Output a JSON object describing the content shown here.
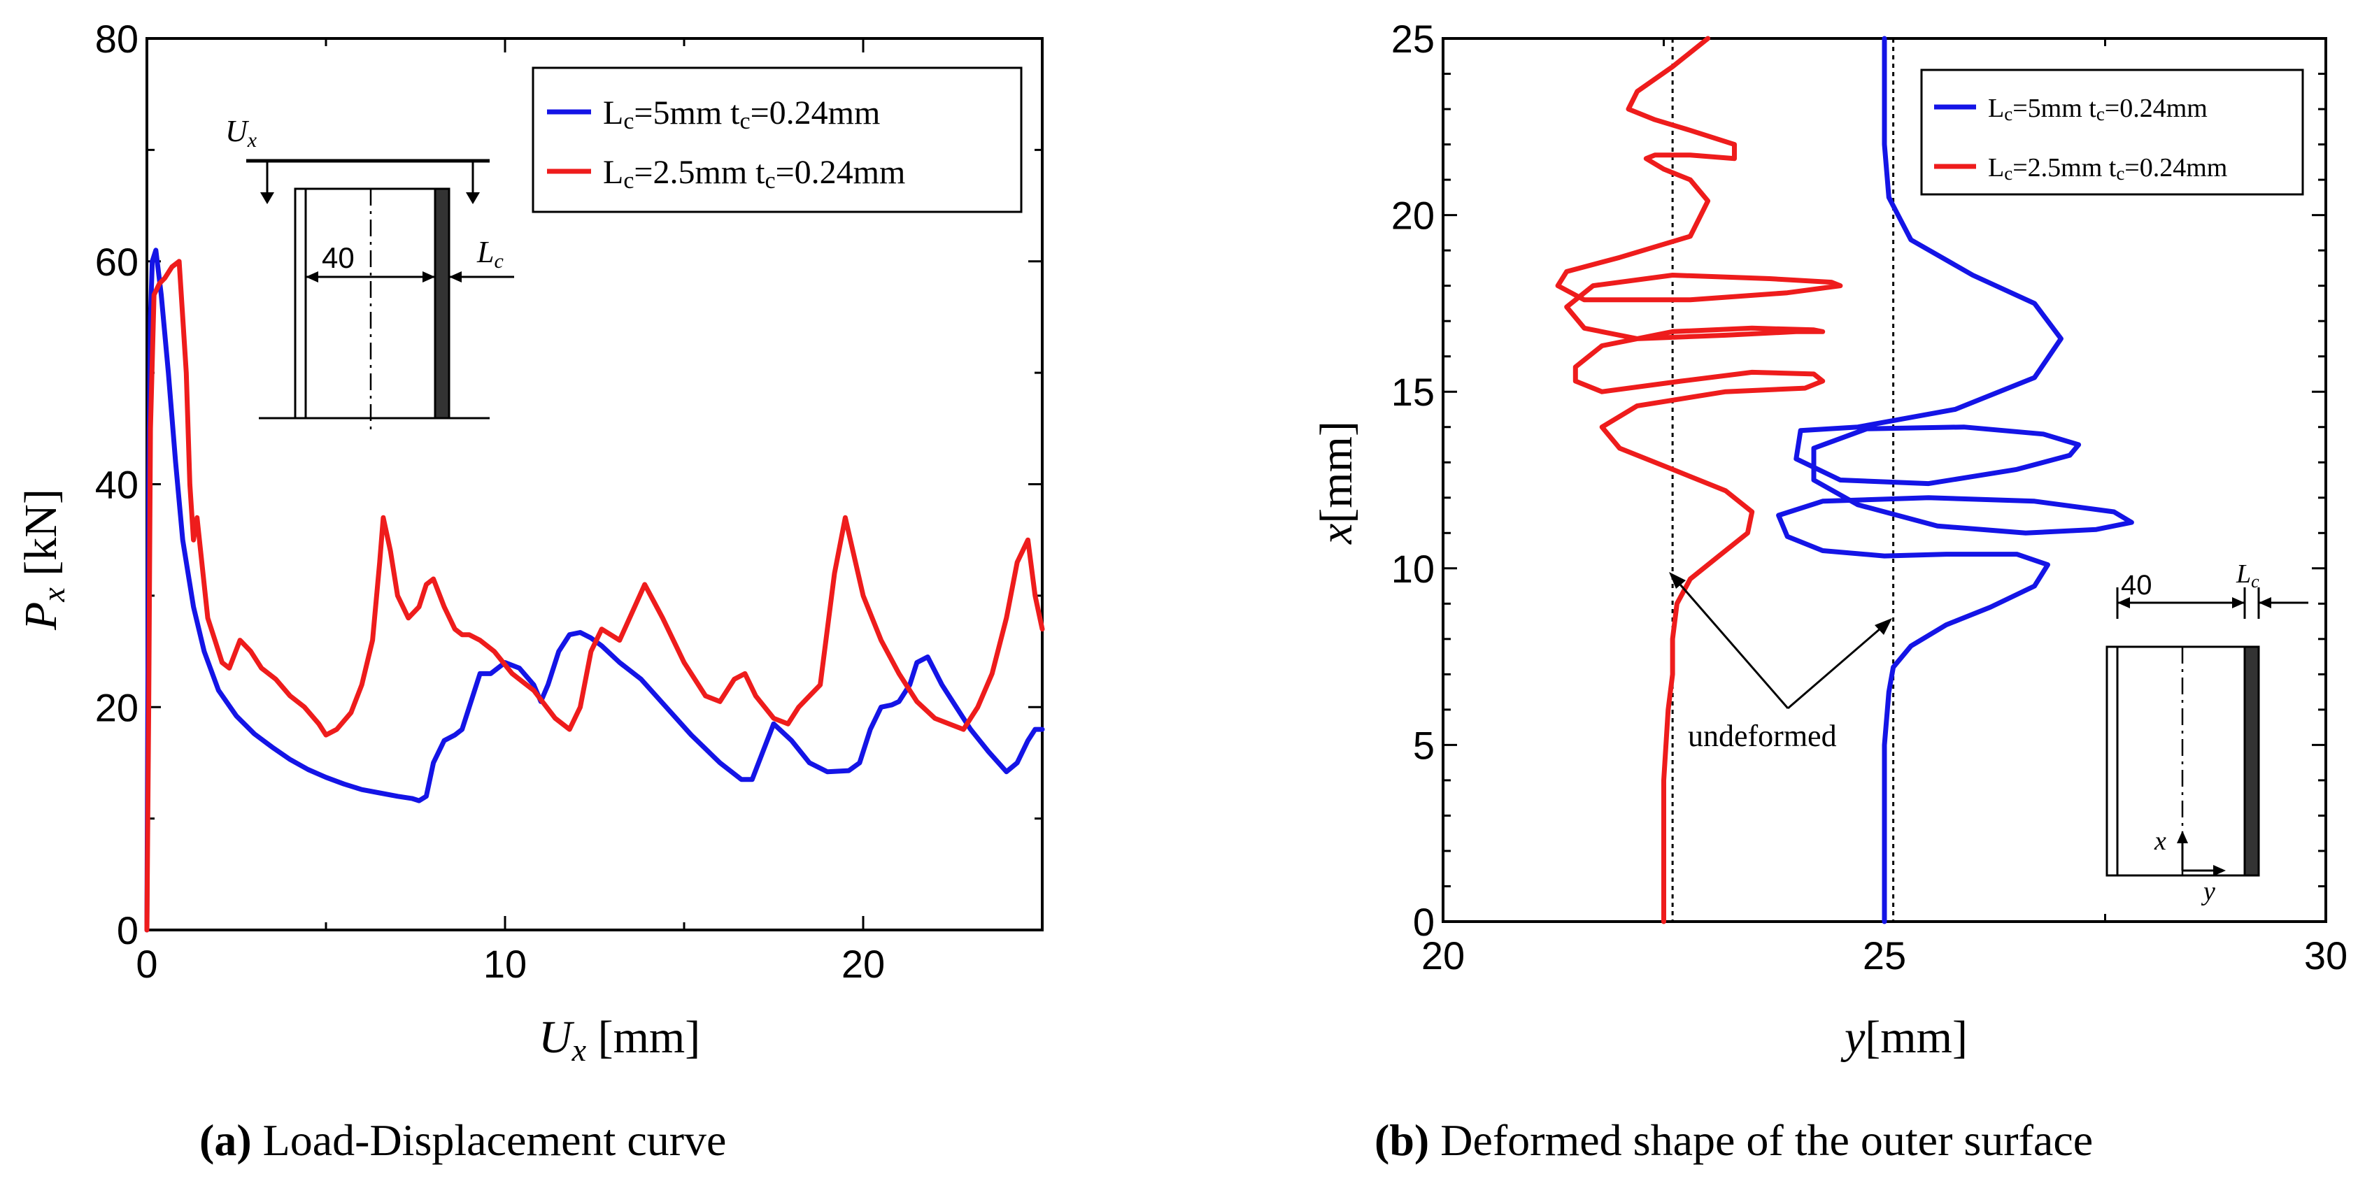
{
  "chart_data": [
    {
      "type": "line",
      "panel_label": "(a)",
      "caption": "Load-Displacement curve",
      "xlabel": "U_x [mm]",
      "ylabel": "P_x [kN]",
      "xlim": [
        0,
        25
      ],
      "ylim": [
        0,
        80
      ],
      "xticks": [
        0,
        10,
        20
      ],
      "yticks": [
        0,
        20,
        40,
        60,
        80
      ],
      "legend_position": "top-right",
      "inset": {
        "label_load": "U_x",
        "label_width": "40",
        "label_cap": "L_c"
      },
      "series": [
        {
          "name": "Lc=5mm tc=0.24mm",
          "color": "#1414e6",
          "x": [
            0,
            0.05,
            0.1,
            0.15,
            0.25,
            0.4,
            0.6,
            0.8,
            1.0,
            1.3,
            1.6,
            2.0,
            2.5,
            3.0,
            3.5,
            4.0,
            4.5,
            5.0,
            5.5,
            6.0,
            6.5,
            7.0,
            7.4,
            7.6,
            7.8,
            8.0,
            8.3,
            8.6,
            8.8,
            9.0,
            9.3,
            9.6,
            10.0,
            10.4,
            10.8,
            11.0,
            11.2,
            11.5,
            11.8,
            12.1,
            12.4,
            12.7,
            13.2,
            13.8,
            14.5,
            15.2,
            16.0,
            16.6,
            16.9,
            17.2,
            17.5,
            18.0,
            18.5,
            19.0,
            19.6,
            19.9,
            20.2,
            20.5,
            20.8,
            21.0,
            21.3,
            21.5,
            21.8,
            22.2,
            22.6,
            23.0,
            23.5,
            24.0,
            24.3,
            24.6,
            24.8,
            25.0
          ],
          "values": [
            0,
            40,
            55,
            60,
            61,
            57,
            50,
            42,
            35,
            29,
            25,
            21.5,
            19.2,
            17.6,
            16.4,
            15.3,
            14.4,
            13.7,
            13.1,
            12.6,
            12.3,
            12.0,
            11.8,
            11.6,
            12,
            15,
            17,
            17.5,
            18,
            20,
            23,
            23,
            24,
            23.5,
            22,
            20.5,
            22,
            25,
            26.5,
            26.7,
            26.2,
            25.5,
            24,
            22.5,
            20,
            17.5,
            15,
            13.5,
            13.5,
            16,
            18.5,
            17,
            15,
            14.2,
            14.3,
            15,
            18,
            20,
            20.2,
            20.5,
            22,
            24,
            24.5,
            22,
            20,
            18,
            16,
            14.2,
            15,
            17,
            18,
            18
          ]
        },
        {
          "name": "Lc=2.5mm tc=0.24mm",
          "color": "#ee1c1c",
          "x": [
            0,
            0.02,
            0.05,
            0.1,
            0.2,
            0.35,
            0.5,
            0.7,
            0.9,
            1.1,
            1.2,
            1.3,
            1.4,
            1.5,
            1.7,
            1.9,
            2.1,
            2.3,
            2.6,
            2.9,
            3.2,
            3.6,
            4.0,
            4.4,
            4.8,
            5.0,
            5.3,
            5.7,
            6.0,
            6.3,
            6.5,
            6.6,
            6.8,
            7.0,
            7.3,
            7.6,
            7.8,
            8.0,
            8.3,
            8.6,
            8.8,
            9.0,
            9.3,
            9.7,
            10.2,
            10.8,
            11.4,
            11.8,
            12.1,
            12.4,
            12.7,
            13.2,
            13.9,
            14.4,
            15.0,
            15.6,
            16.0,
            16.4,
            16.7,
            17.0,
            17.5,
            17.9,
            18.2,
            18.5,
            18.8,
            19.0,
            19.2,
            19.5,
            20.0,
            20.5,
            21.0,
            21.5,
            22.0,
            22.4,
            22.8,
            23.2,
            23.6,
            24.0,
            24.3,
            24.6,
            24.8,
            25.0
          ],
          "values": [
            0,
            8,
            20,
            45,
            57,
            58,
            58.5,
            59.5,
            60,
            50,
            40,
            35,
            37,
            34,
            28,
            26,
            24,
            23.5,
            26,
            25,
            23.5,
            22.5,
            21,
            20,
            18.5,
            17.5,
            18,
            19.5,
            22,
            26,
            33,
            37,
            34,
            30,
            28,
            29,
            31,
            31.5,
            29,
            27,
            26.5,
            26.5,
            26,
            25,
            23,
            21.5,
            19,
            18,
            20,
            25,
            27,
            26,
            31,
            28,
            24,
            21,
            20.5,
            22.5,
            23,
            21,
            19,
            18.5,
            20,
            21,
            22,
            27,
            32,
            37,
            30,
            26,
            23,
            20.5,
            19,
            18.5,
            18,
            20,
            23,
            28,
            33,
            35,
            30,
            27
          ]
        }
      ]
    },
    {
      "type": "line",
      "panel_label": "(b)",
      "caption": "Deformed shape of the outer surface",
      "xlabel": "y[mm]",
      "ylabel": "x[mm]",
      "xlim": [
        20,
        30
      ],
      "ylim": [
        0,
        25
      ],
      "xticks": [
        20,
        25,
        30
      ],
      "yticks": [
        0,
        5,
        10,
        15,
        20,
        25
      ],
      "legend_position": "top-right",
      "annotation": "undeformed",
      "reference_lines_y": [
        22.6,
        25.1
      ],
      "inset": {
        "label_width": "40",
        "label_cap": "L_c",
        "axis_x": "x",
        "axis_y": "y"
      },
      "series": [
        {
          "name": "Lc=5mm tc=0.24mm",
          "color": "#1414e6",
          "y": [
            25.0,
            25.0,
            25.05,
            25.1,
            25.3,
            25.7,
            26.2,
            26.7,
            26.85,
            26.5,
            25.7,
            25.0,
            24.3,
            23.9,
            23.8,
            24.3,
            25.5,
            26.7,
            27.6,
            27.8,
            27.4,
            26.6,
            25.6,
            24.7,
            24.2,
            24.2,
            24.8,
            25.9,
            26.8,
            27.2,
            27.1,
            26.5,
            25.5,
            24.5,
            24.0,
            24.05,
            24.7,
            25.8,
            26.7,
            27.0,
            26.7,
            26.0,
            25.3,
            25.05,
            25.0,
            25.0,
            25.0
          ],
          "values": [
            0,
            5,
            6.5,
            7.2,
            7.8,
            8.4,
            8.9,
            9.5,
            10.1,
            10.4,
            10.4,
            10.35,
            10.5,
            10.9,
            11.5,
            11.9,
            12.0,
            11.9,
            11.6,
            11.3,
            11.1,
            11.0,
            11.2,
            11.8,
            12.5,
            13.4,
            13.95,
            14.0,
            13.8,
            13.5,
            13.2,
            12.8,
            12.4,
            12.5,
            13.1,
            13.9,
            14.0,
            14.5,
            15.4,
            16.5,
            17.5,
            18.3,
            19.3,
            20.5,
            22,
            24,
            25
          ]
        },
        {
          "name": "Lc=2.5mm tc=0.24mm",
          "color": "#ee1c1c",
          "y": [
            22.5,
            22.5,
            22.55,
            22.6,
            22.6,
            22.65,
            22.8,
            23.1,
            23.45,
            23.5,
            23.2,
            22.6,
            22.0,
            21.8,
            22.2,
            23.2,
            24.1,
            24.3,
            24.2,
            23.5,
            22.7,
            21.8,
            21.5,
            21.5,
            21.8,
            22.6,
            23.5,
            24.2,
            24.3,
            24.0,
            23.2,
            22.2,
            21.6,
            21.4,
            21.7,
            22.6,
            23.7,
            24.4,
            24.5,
            23.9,
            22.8,
            21.6,
            21.3,
            21.4,
            22.0,
            22.8,
            23.0,
            22.8,
            22.5,
            22.3,
            22.4,
            22.8,
            23.3,
            23.3,
            22.8,
            22.4,
            22.1,
            22.2,
            22.6,
            23.0
          ],
          "values": [
            0,
            4,
            6,
            7,
            8,
            9,
            9.7,
            10.3,
            11.0,
            11.6,
            12.2,
            12.8,
            13.4,
            14.0,
            14.6,
            15.0,
            15.1,
            15.3,
            15.5,
            15.55,
            15.3,
            15.0,
            15.3,
            15.7,
            16.3,
            16.7,
            16.8,
            16.75,
            16.7,
            16.7,
            16.6,
            16.5,
            16.8,
            17.4,
            18.0,
            18.3,
            18.2,
            18.1,
            18.0,
            17.8,
            17.6,
            17.6,
            18.0,
            18.4,
            18.8,
            19.4,
            20.4,
            21.0,
            21.3,
            21.6,
            21.7,
            21.7,
            21.6,
            22.0,
            22.4,
            22.7,
            23.0,
            23.5,
            24.2,
            25
          ]
        }
      ]
    }
  ]
}
